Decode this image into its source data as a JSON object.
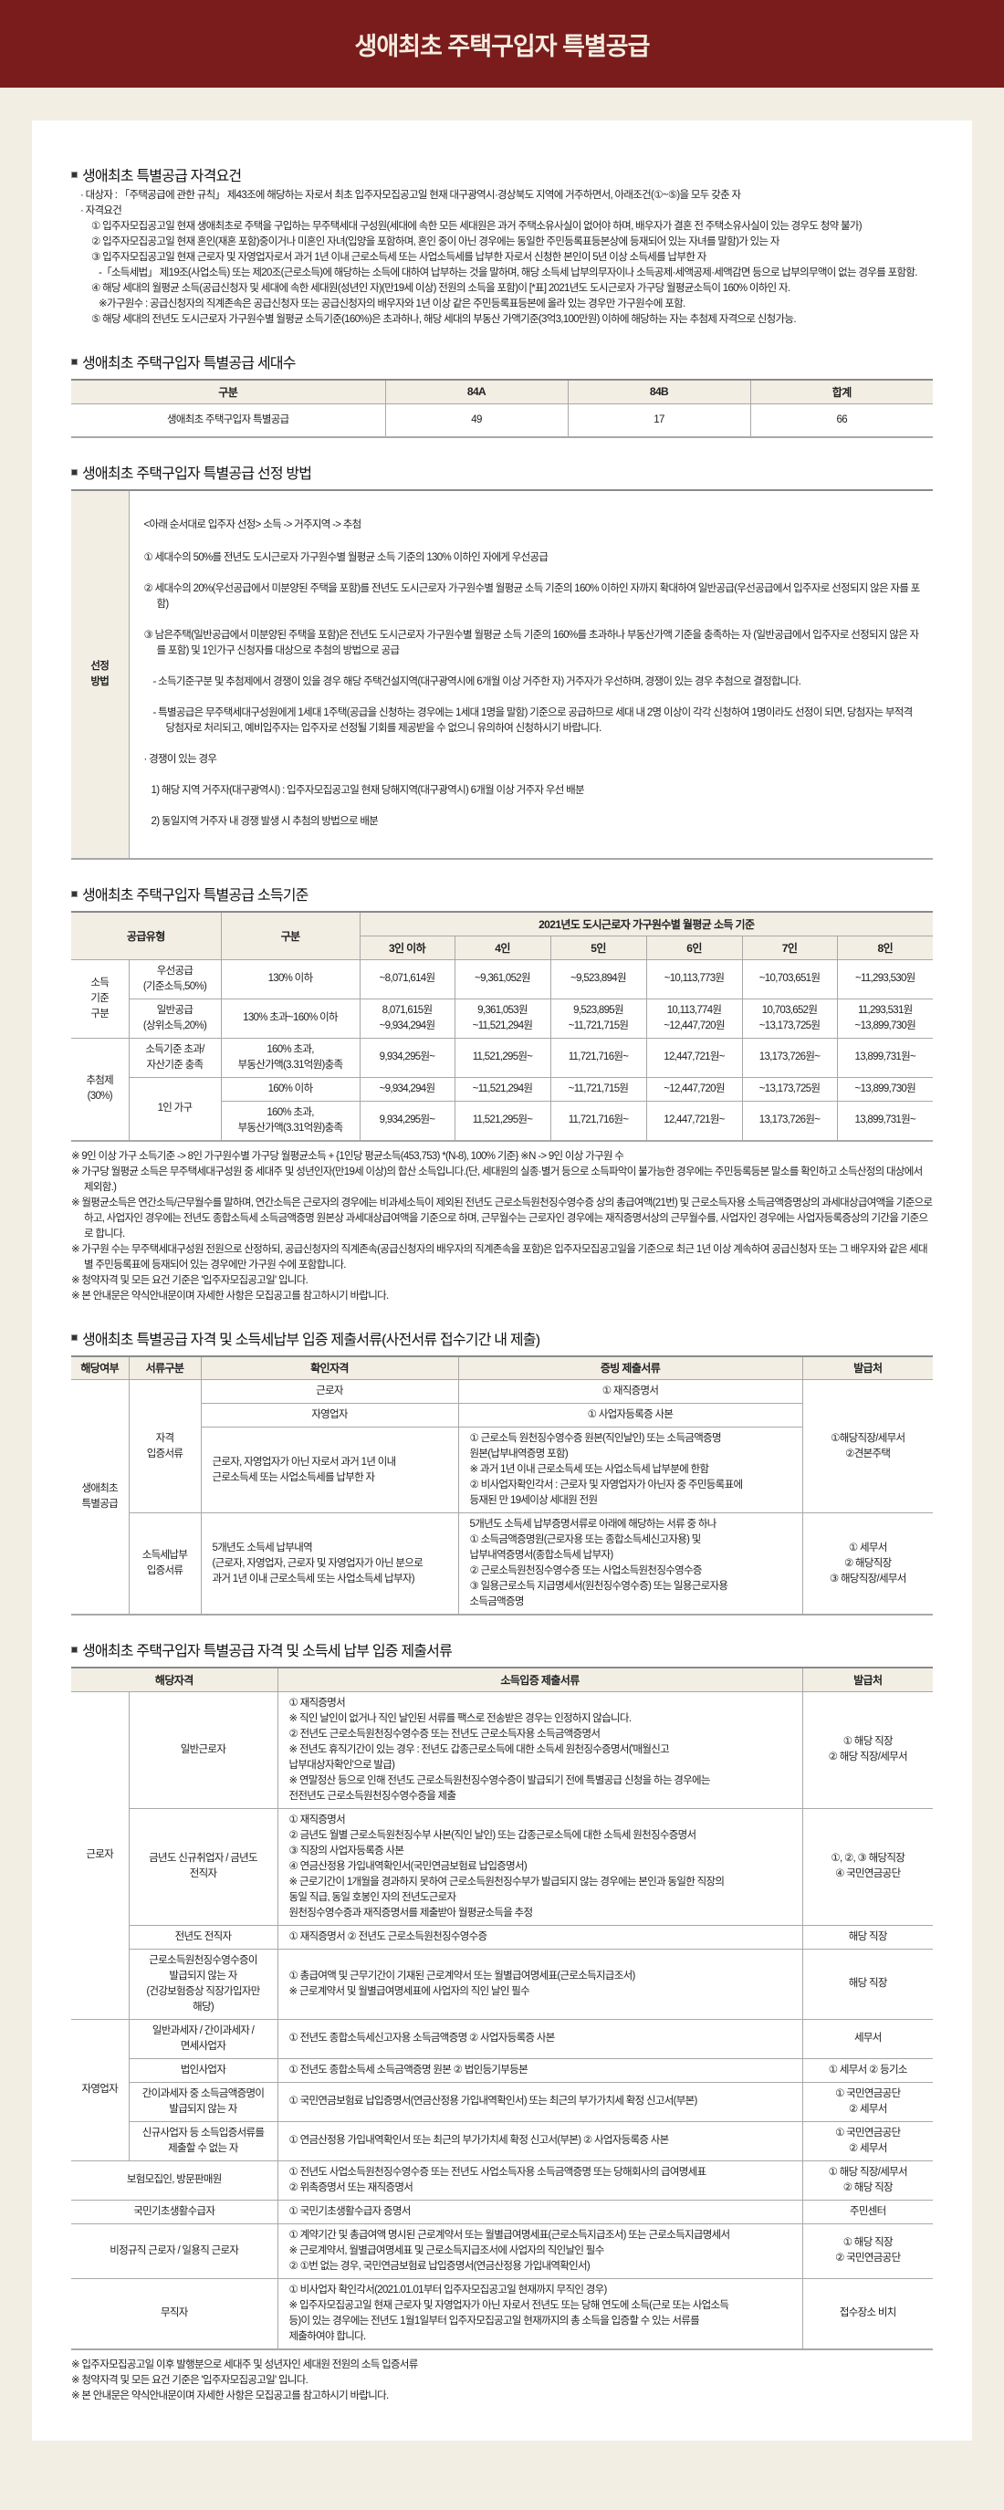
{
  "header": {
    "title": "생애최초 주택구입자 특별공급"
  },
  "section1": {
    "title": "생애최초 특별공급 자격요건",
    "lines": [
      "· 대상자 : 「주택공급에 관한 규칙」 제43조에 해당하는 자로서 최초 입주자모집공고일 현재 대구광역시·경상북도 지역에 거주하면서, 아래조건(①~⑤)을 모두 갖춘 자",
      "· 자격요건",
      "① 입주자모집공고일 현재 생애최초로 주택을 구입하는 무주택세대 구성원(세대에 속한 모든 세대원은 과거 주택소유사실이 없어야 하며, 배우자가 결혼 전 주택소유사실이 있는 경우도 청약 불가)",
      "② 입주자모집공고일 현재 혼인(재혼 포함)중이거나 미혼인 자녀(입양을 포함하며, 혼인 중이 아닌 경우에는 동일한 주민등록표등본상에 등재되어 있는 자녀를 말함)가 있는 자",
      "③ 입주자모집공고일 현재 근로자 및 자영업자로서 과거 1년 이내 근로소득세 또는 사업소득세를 납부한 자로서 신청한 본인이 5년 이상 소득세를 납부한 자",
      "-「소득세법」 제19조(사업소득) 또는 제20조(근로소득)에 해당하는 소득에 대하여 납부하는 것을 말하며, 해당 소득세 납부의무자이나 소득공제·세액공제·세액감면 등으로 납부의무액이 없는 경우를 포함함.",
      "④ 해당 세대의 월평균 소득(공급신청자 및 세대에 속한 세대원(성년인 자)(만19세 이상) 전원의 소득을 포함)이 [*표] 2021년도 도시근로자 가구당 월평균소득이 160% 이하인 자.",
      "※가구원수 : 공급신청자의 직계존속은 공급신청자 또는 공급신청자의 배우자와 1년 이상 같은 주민등록표등본에 올라 있는 경우만 가구원수에 포함.",
      "⑤ 해당 세대의 전년도 도시근로자 가구원수별 월평균 소득기준(160%)은 초과하나, 해당 세대의 부동산 가액기준(3억3,100만원) 이하에 해당하는 자는 추첨제 자격으로 신청가능."
    ]
  },
  "section2": {
    "title": "생애최초 주택구입자 특별공급 세대수",
    "headers": [
      "구분",
      "84A",
      "84B",
      "합계"
    ],
    "row": [
      "생애최초 주택구입자 특별공급",
      "49",
      "17",
      "66"
    ]
  },
  "section3": {
    "title": "생애최초 주택구입자 특별공급 선정 방법",
    "label": "선정\n방법",
    "lines": [
      "<아래 순서대로 입주자 선정> 소득 -> 거주지역 -> 추첨",
      "① 세대수의 50%를 전년도 도시근로자 가구원수별 월평균 소득 기준의 130% 이하인 자에게 우선공급",
      "② 세대수의 20%(우선공급에서 미분양된 주택을 포함)를 전년도 도시근로자 가구원수별 월평균 소득 기준의 160% 이하인 자까지 확대하여 일반공급(우선공급에서 입주자로 선정되지 않은 자를 포함)",
      "③ 남은주택(일반공급에서 미분양된 주택을 포함)은 전년도 도시근로자 가구원수별 월평균 소득 기준의 160%를 초과하나 부동산가액 기준을 충족하는 자 (일반공급에서 입주자로 선정되지 않은 자를 포함) 및 1인가구 신청자를 대상으로 추첨의 방법으로 공급",
      "- 소득기준구분 및 추첨제에서 경쟁이 있을 경우 해당 주택건설지역(대구광역시에 6개월 이상 거주한 자) 거주자가 우선하며, 경쟁이 있는 경우 추첨으로 결정합니다.",
      "- 특별공급은 무주택세대구성원에게 1세대 1주택(공급을 신청하는 경우에는 1세대 1명을 말함) 기준으로 공급하므로 세대 내 2명 이상이 각각 신청하여 1명이라도 선정이 되면, 당첨자는 부적격 당첨자로 처리되고, 예비입주자는 입주자로 선정될 기회를 제공받을 수 없으니 유의하여 신청하시기 바랍니다.",
      "· 경쟁이 있는 경우",
      "1) 해당 지역 거주자(대구광역시) : 입주자모집공고일 현재 당해지역(대구광역시) 6개월 이상 거주자 우선 배분",
      "2) 동일지역 거주자 내 경쟁 발생 시 추첨의 방법으로 배분"
    ]
  },
  "section4": {
    "title": "생애최초 주택구입자 특별공급 소득기준",
    "headers": [
      [
        {
          "t": "공급유형",
          "rs": 2,
          "cs": 2
        },
        {
          "t": "구분",
          "rs": 2
        },
        {
          "t": "2021년도 도시근로자 가구원수별 월평균 소득 기준",
          "cs": 6
        }
      ],
      [
        {
          "t": "3인 이하"
        },
        {
          "t": "4인"
        },
        {
          "t": "5인"
        },
        {
          "t": "6인"
        },
        {
          "t": "7인"
        },
        {
          "t": "8인"
        }
      ]
    ],
    "rows": [
      [
        {
          "t": "소득\n기준\n구분",
          "rs": 2
        },
        {
          "t": "우선공급\n(기준소득,50%)"
        },
        {
          "t": "130% 이하"
        },
        {
          "t": "~8,071,614원"
        },
        {
          "t": "~9,361,052원"
        },
        {
          "t": "~9,523,894원"
        },
        {
          "t": "~10,113,773원"
        },
        {
          "t": "~10,703,651원"
        },
        {
          "t": "~11,293,530원"
        }
      ],
      [
        {
          "t": "일반공급\n(상위소득,20%)"
        },
        {
          "t": "130% 초과~160% 이하"
        },
        {
          "t": "8,071,615원\n~9,934,294원"
        },
        {
          "t": "9,361,053원\n~11,521,294원"
        },
        {
          "t": "9,523,895원\n~11,721,715원"
        },
        {
          "t": "10,113,774원\n~12,447,720원"
        },
        {
          "t": "10,703,652원\n~13,173,725원"
        },
        {
          "t": "11,293,531원\n~13,899,730원"
        }
      ],
      [
        {
          "t": "추첨제\n(30%)",
          "rs": 3
        },
        {
          "t": "소득기준 초과/\n자산기준 충족"
        },
        {
          "t": "160% 초과,\n부동산가액(3.31억원)충족"
        },
        {
          "t": "9,934,295원~"
        },
        {
          "t": "11,521,295원~"
        },
        {
          "t": "11,721,716원~"
        },
        {
          "t": "12,447,721원~"
        },
        {
          "t": "13,173,726원~"
        },
        {
          "t": "13,899,731원~"
        }
      ],
      [
        {
          "t": "1인 가구",
          "rs": 2
        },
        {
          "t": "160% 이하"
        },
        {
          "t": "~9,934,294원"
        },
        {
          "t": "~11,521,294원"
        },
        {
          "t": "~11,721,715원"
        },
        {
          "t": "~12,447,720원"
        },
        {
          "t": "~13,173,725원"
        },
        {
          "t": "~13,899,730원"
        }
      ],
      [
        {
          "t": "160% 초과,\n부동산가액(3.31억원)충족"
        },
        {
          "t": "9,934,295원~"
        },
        {
          "t": "11,521,295원~"
        },
        {
          "t": "11,721,716원~"
        },
        {
          "t": "12,447,721원~"
        },
        {
          "t": "13,173,726원~"
        },
        {
          "t": "13,899,731원~"
        }
      ]
    ],
    "notes": [
      "※ 9인 이상 가구 소득기준 -> 8인 가구원수별 가구당 월평균소득 + {1인당 평균소득(453,753) *(N-8), 100% 기준}      ※N -> 9인 이상 가구원 수",
      "※ 가구당 월평균 소득은 무주택세대구성원 중 세대주 및 성년인자(만19세 이상)의 합산 소득입니다.(단, 세대원의 실종·별거 등으로 소득파악이 불가능한 경우에는 주민등록등본 말소를 확인하고 소득산정의 대상에서 제외함.)",
      "※ 월평균소득은 연간소득/근무월수를 말하며, 연간소득은 근로자의 경우에는 비과세소득이 제외된 전년도 근로소득원천징수영수증 상의 총급여액(21번) 및 근로소득자용 소득금액증명상의 과세대상급여액을 기준으로 하고, 사업자인 경우에는 전년도 종합소득세 소득금액증명 원본상 과세대상급여액을 기준으로 하며, 근무월수는 근로자인 경우에는 재직증명서상의 근무월수를, 사업자인 경우에는 사업자등록증상의 기간을 기준으로 합니다.",
      "※ 가구원 수는 무주택세대구성원 전원으로 산정하되, 공급신청자의 직계존속(공급신청자의 배우자의 직계존속을 포함)은 입주자모집공고일을 기준으로 최근 1년 이상 계속하여 공급신청자 또는 그 배우자와 같은 세대별 주민등록표에 등재되어 있는 경우에만 가구원 수에 포함합니다.",
      "※ 청약자격 및 모든 요건 기준은 '입주자모집공고일' 입니다.",
      "※ 본 안내문은 약식안내문이며 자세한 사항은 모집공고를 참고하시기 바랍니다."
    ]
  },
  "section5": {
    "title": "생애최초 특별공급 자격 및 소득세납부 입증 제출서류(사전서류 접수기간 내 제출)",
    "headers": [
      [
        {
          "t": "해당여부"
        },
        {
          "t": "서류구분"
        },
        {
          "t": "확인자격"
        },
        {
          "t": "증빙 제출서류"
        },
        {
          "t": "발급처"
        }
      ]
    ],
    "rows": [
      [
        {
          "t": "생애최초\n특별공급",
          "rs": 4
        },
        {
          "t": "자격\n입증서류",
          "rs": 3
        },
        {
          "t": "근로자"
        },
        {
          "t": "① 재직증명서"
        },
        {
          "t": "①해당직장/세무서\n②견본주택",
          "rs": 3
        }
      ],
      [
        {
          "t": "자영업자"
        },
        {
          "t": "① 사업자등록증 사본"
        }
      ],
      [
        {
          "t": "근로자, 자영업자가 아닌 자로서 과거 1년 이내\n근로소득세 또는 사업소득세를 납부한 자",
          "left": true
        },
        {
          "t": "① 근로소득 원천징수영수증 원본(직인날인) 또는 소득금액증명\n원본(납부내역증명 포함)\n※ 과거 1년 이내 근로소득세 또는 사업소득세 납부분에 한함\n② 비사업자확인각서 : 근로자 및 자영업자가 아닌자 중 주민등록표에\n등재된 만 19세이상 세대원 전원",
          "left": true
        }
      ],
      [
        {
          "t": "소득세납부\n입증서류"
        },
        {
          "t": "5개년도 소득세 납부내역\n(근로자, 자영업자, 근로자 및 자영업자가 아닌 분으로\n과거 1년 이내 근로소득세 또는 사업소득세 납부자)",
          "left": true
        },
        {
          "t": "5개년도 소득세 납부증명서류로 아래에 해당하는 서류 중 하나\n① 소득금액증명원(근로자용 또는 종합소득세신고자용) 및\n납부내역증명서(종합소득세 납부자)\n② 근로소득원천징수영수증 또는 사업소득원천징수영수증\n③ 일용근로소득 지급명세서(원천징수영수증) 또는 일용근로자용\n소득금액증명",
          "left": true
        },
        {
          "t": "① 세무서\n② 해당직장\n③ 해당직장/세무서"
        }
      ]
    ]
  },
  "section6": {
    "title": "생애최초 주택구입자 특별공급 자격 및 소득세 납부 입증 제출서류",
    "headers": [
      [
        {
          "t": "해당자격",
          "cs": 2
        },
        {
          "t": "소득입증 제출서류"
        },
        {
          "t": "발급처"
        }
      ]
    ],
    "rows": [
      [
        {
          "t": "근로자",
          "rs": 4
        },
        {
          "t": "일반근로자"
        },
        {
          "t": "① 재직증명서\n※ 직인 날인이 없거나 직인 날인된 서류를 팩스로 전송받은 경우는 인정하지 않습니다.\n② 전년도 근로소득원천징수영수증 또는 전년도 근로소득자용 소득금액증명서\n※ 전년도 휴직기간이 있는 경우 : 전년도 갑종근로소득에 대한 소득세 원천징수증명서('매월신고\n납부대상자확인'으로 발급)\n※ 연말정산 등으로 인해 전년도 근로소득원천징수영수증이 발급되기 전에 특별공급 신청을 하는 경우에는\n전전년도 근로소득원천징수영수증을 제출",
          "left": true
        },
        {
          "t": "① 해당 직장\n② 해당 직장/세무서"
        }
      ],
      [
        {
          "t": "금년도 신규취업자 / 금년도\n전직자"
        },
        {
          "t": "① 재직증명서\n② 금년도 월별 근로소득원천징수부 사본(직인 날인) 또는 갑종근로소득에 대한 소득세 원천징수증명서\n③ 직장의 사업자등록증 사본\n④ 연금산정용 가입내역확인서(국민연금보험료 납입증명서)\n※ 근로기간이 1개월을 경과하지 못하여 근로소득원천징수부가 발급되지 않는 경우에는 본인과 동일한 직장의\n동일 직급, 동일 호봉인 자의 전년도근로자\n원천징수영수증과 재직증명서를 제출받아 월평균소득을 추정",
          "left": true
        },
        {
          "t": "①, ②, ③ 해당직장\n④ 국민연금공단"
        }
      ],
      [
        {
          "t": "전년도 전직자"
        },
        {
          "t": "① 재직증명서 ② 전년도 근로소득원천징수영수증",
          "left": true
        },
        {
          "t": "해당 직장"
        }
      ],
      [
        {
          "t": "근로소득원천징수영수증이\n발급되지 않는 자\n(건강보험증상 직장가입자만\n해당)"
        },
        {
          "t": "① 총급여액 및 근무기간이 기재된 근로계약서 또는 월별급여명세표(근로소득지급조서)\n※ 근로계약서 및 월별급여명세표에 사업자의 직인 날인 필수",
          "left": true
        },
        {
          "t": "해당 직장"
        }
      ],
      [
        {
          "t": "자영업자",
          "rs": 4
        },
        {
          "t": "일반과세자 / 간이과세자 /\n면세사업자"
        },
        {
          "t": "① 전년도 종합소득세신고자용 소득금액증명 ② 사업자등록증 사본",
          "left": true
        },
        {
          "t": "세무서"
        }
      ],
      [
        {
          "t": "법인사업자"
        },
        {
          "t": "① 전년도 종합소득세 소득금액증명 원본 ② 법인등기부등본",
          "left": true
        },
        {
          "t": "① 세무서 ② 등기소"
        }
      ],
      [
        {
          "t": "간이과세자 중 소득금액증명이\n발급되지 않는 자"
        },
        {
          "t": "① 국민연금보험료 납입증명서(연금산정용 가입내역확인서) 또는 최근의 부가가치세 확정 신고서(부본)",
          "left": true
        },
        {
          "t": "① 국민연금공단\n② 세무서"
        }
      ],
      [
        {
          "t": "신규사업자 등 소득입증서류를\n제출할 수 없는 자"
        },
        {
          "t": "① 연금산정용 가입내역확인서 또는 최근의 부가가치세 확정 신고서(부본) ② 사업자등록증 사본",
          "left": true
        },
        {
          "t": "① 국민연금공단\n② 세무서"
        }
      ],
      [
        {
          "t": "보험모집인, 방문판매원",
          "cs": 2
        },
        {
          "t": "① 전년도 사업소득원천징수영수증 또는 전년도 사업소득자용 소득금액증명 또는 당해회사의 급여명세표\n② 위촉증명서 또는 재직증명서",
          "left": true
        },
        {
          "t": "① 해당 직장/세무서\n② 해당 직장"
        }
      ],
      [
        {
          "t": "국민기초생활수급자",
          "cs": 2
        },
        {
          "t": "① 국민기초생활수급자 증명서",
          "left": true
        },
        {
          "t": "주민센터"
        }
      ],
      [
        {
          "t": "비정규직 근로자 / 일용직 근로자",
          "cs": 2
        },
        {
          "t": "① 계약기간 및 총급여액 명시된 근로계약서 또는 월별급여명세표(근로소득지급조서) 또는 근로소득지급명세서\n※ 근로계약서, 월별급여명세표 및 근로소득지급조서에 사업자의 직인날인 필수\n② ①번 없는 경우, 국민연금보험료 납입증명서(연금산정용 가입내역확인서)",
          "left": true
        },
        {
          "t": "① 해당 직장\n② 국민연금공단"
        }
      ],
      [
        {
          "t": "무직자",
          "cs": 2
        },
        {
          "t": "① 비사업자 확인각서(2021.01.01부터 입주자모집공고일 현재까지 무직인 경우)\n※ 입주자모집공고일 현재 근로자 및 자영업자가 아닌 자로서 전년도 또는 당해 연도에 소득(근로 또는 사업소득\n등)이 있는 경우에는 전년도 1월1일부터 입주자모집공고일 현재까지의 총 소득을 입증할 수 있는 서류를\n제출하여야 합니다.",
          "left": true
        },
        {
          "t": "접수장소 비치"
        }
      ]
    ],
    "notes": [
      "※ 입주자모집공고일 이후 발행분으로 세대주 및 성년자인 세대원 전원의 소득 입증서류",
      "※ 청약자격 및 모든 요건 기준은 '입주자모집공고일' 입니다.",
      "※ 본 안내문은 약식안내문이며 자세한 사항은 모집공고를 참고하시기 바랍니다."
    ]
  }
}
